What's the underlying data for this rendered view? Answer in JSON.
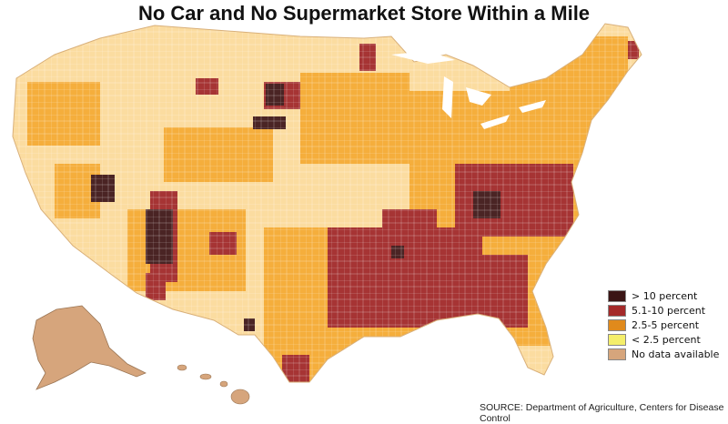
{
  "title": "No Car and No Supermarket Store Within a Mile",
  "legend": {
    "items": [
      {
        "label": "> 10 percent",
        "color": "#3a1515"
      },
      {
        "label": "5.1-10 percent",
        "color": "#a42a2a"
      },
      {
        "label": "2.5-5 percent",
        "color": "#e08a1c"
      },
      {
        "label": "< 2.5 percent",
        "color": "#f4ee6a"
      },
      {
        "label": "No data available",
        "color": "#d6a57c"
      }
    ]
  },
  "source": "SOURCE: Department of Agriculture, Centers for Disease Control",
  "colors": {
    "light": "#fbdca0",
    "medium": "#f5ae3c",
    "high": "#a63434",
    "veryhigh": "#4a2424",
    "nodata": "#d6a57c"
  }
}
